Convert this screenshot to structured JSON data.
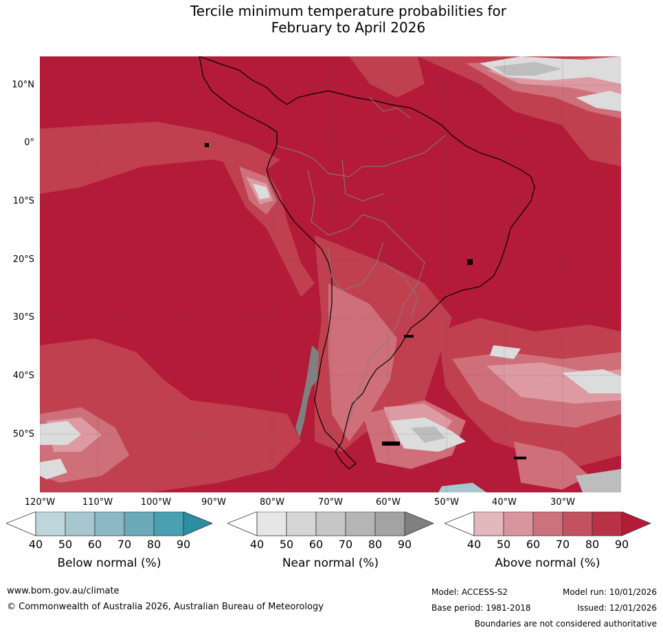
{
  "title": {
    "line1": "Tercile minimum temperature probabilities for",
    "line2": "February to April 2026"
  },
  "map": {
    "lat_labels": [
      "10°N",
      "0°",
      "10°S",
      "20°S",
      "30°S",
      "40°S",
      "50°S"
    ],
    "lon_labels": [
      "120°W",
      "110°W",
      "100°W",
      "90°W",
      "80°W",
      "70°W",
      "60°W",
      "50°W",
      "40°W",
      "30°W"
    ],
    "colors": {
      "above_strong": "#b31b39",
      "above_mid": "#c0404f",
      "above_light": "#cf6f7a",
      "above_pale": "#dd9aa2",
      "near_light": "#dcdcdc",
      "near_mid": "#bdbdbd",
      "below_light": "#a6c7cf",
      "coast": "#000000",
      "borders": "#808080"
    }
  },
  "colorbars": [
    {
      "label": "Below normal (%)",
      "ticks": [
        "40",
        "50",
        "60",
        "70",
        "80",
        "90"
      ],
      "colors": [
        "#ffffff",
        "#bdd6dc",
        "#a6c7cf",
        "#8bb8c4",
        "#6aaab9",
        "#4aa0b1",
        "#2b8ea3"
      ]
    },
    {
      "label": "Near normal (%)",
      "ticks": [
        "40",
        "50",
        "60",
        "70",
        "80",
        "90"
      ],
      "colors": [
        "#ffffff",
        "#e6e6e6",
        "#d6d6d6",
        "#c6c6c6",
        "#b5b5b5",
        "#a3a3a3",
        "#808080"
      ]
    },
    {
      "label": "Above normal (%)",
      "ticks": [
        "40",
        "50",
        "60",
        "70",
        "80",
        "90"
      ],
      "colors": [
        "#ffffff",
        "#e3b8bd",
        "#d8959d",
        "#cc727d",
        "#c2525f",
        "#b93346",
        "#b31b39"
      ]
    }
  ],
  "footer": {
    "url": "www.bom.gov.au/climate",
    "copyright": "© Commonwealth of Australia 2026, Australian Bureau of Meteorology",
    "model": "Model: ACCESS-S2",
    "base_period": "Base period: 1981-2018",
    "model_run": "Model run: 10/01/2026",
    "issued": "Issued: 12/01/2026",
    "disclaimer": "Boundaries are not considered authoritative"
  }
}
